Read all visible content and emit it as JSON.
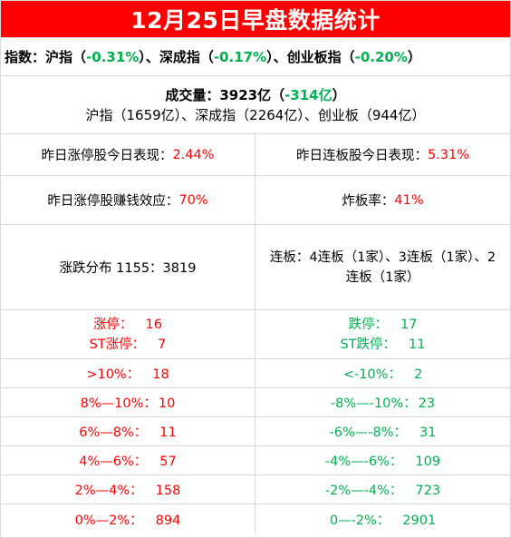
{
  "title": "12月25日早盘数据统计",
  "index_line": {
    "label": "指数：",
    "sh_label": "沪指（",
    "sh_value": "-0.31%",
    "sh_close": "）、",
    "sz_label": "深成指（",
    "sz_value": "-0.17%",
    "sz_close": "）、",
    "cy_label": "创业板指（",
    "cy_value": "-0.20%",
    "cy_close": "）"
  },
  "volume": {
    "label": "成交量：3923亿（",
    "change": "-314亿",
    "close": "）",
    "detail": "沪指（1659亿）、深成指（2264亿）、创业板（944亿）"
  },
  "stats": {
    "yesterday_limit_up_label": "昨日涨停股今日表现：",
    "yesterday_limit_up_value": "2.44%",
    "yesterday_consecutive_label": "昨日连板股今日表现：",
    "yesterday_consecutive_value": "5.31%",
    "money_effect_label": "昨日涨停股赚钱效应：",
    "money_effect_value": "70%",
    "break_rate_label": "炸板率：",
    "break_rate_value": "41%",
    "distribution": "涨跌分布 1155：3819",
    "consecutive_detail": "连板：4连板（1家）、3连板（1家）、2连板（1家）"
  },
  "limits": {
    "up_label": "涨停：",
    "up_value": "16",
    "st_up_label": "ST涨停：",
    "st_up_value": "7",
    "down_label": "跌停：",
    "down_value": "17",
    "st_down_label": "ST跌停：",
    "st_down_value": "11"
  },
  "ranges": [
    {
      "up_label": ">10%：",
      "up_value": "18",
      "down_label": "<-10%：",
      "down_value": "2"
    },
    {
      "up_label": "8%—10%：",
      "up_value": "10",
      "down_label": "-8%—-10%：",
      "down_value": "23"
    },
    {
      "up_label": "6%—8%：",
      "up_value": "11",
      "down_label": "-6%—-8%：",
      "down_value": "31"
    },
    {
      "up_label": "4%—6%：",
      "up_value": "57",
      "down_label": "-4%—-6%：",
      "down_value": "109"
    },
    {
      "up_label": "2%—4%：",
      "up_value": "158",
      "down_label": "-2%—-4%：",
      "down_value": "723"
    },
    {
      "up_label": "0%—2%：",
      "up_value": "894",
      "down_label": "0—-2%：",
      "down_value": "2901"
    }
  ],
  "colors": {
    "title_bg": "#fe0000",
    "up": "#ff0000",
    "down": "#00b050",
    "grid": "#d9d9d9"
  }
}
